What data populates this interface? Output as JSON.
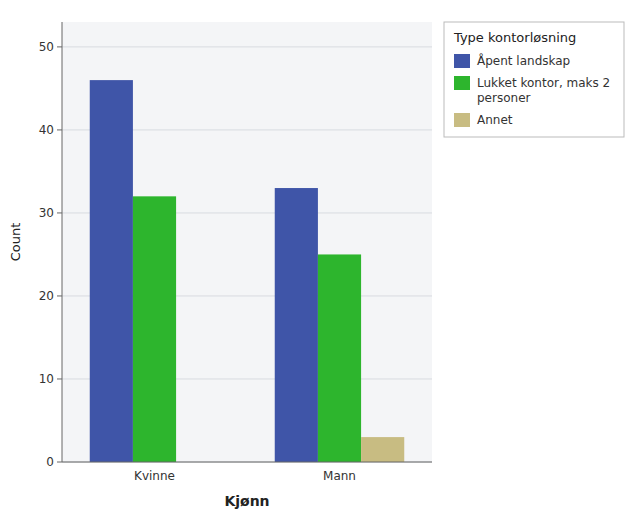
{
  "chart_data": {
    "type": "bar",
    "categories": [
      "Kvinne",
      "Mann"
    ],
    "series": [
      {
        "name": "Åpent landskap",
        "color": "#3f55a8",
        "values": [
          46,
          33
        ]
      },
      {
        "name": "Lukket kontor, maks 2\npersoner",
        "color": "#2db52d",
        "values": [
          32,
          25
        ]
      },
      {
        "name": "Annet",
        "color": "#c8bc82",
        "values": [
          0,
          3
        ]
      }
    ],
    "xlabel": "Kjønn",
    "ylabel": "Count",
    "legend_title": "Type kontorløsning",
    "ylim": [
      0,
      53
    ],
    "yticks": [
      0,
      10,
      20,
      30,
      40,
      50
    ],
    "grid": true,
    "legend": "right"
  }
}
